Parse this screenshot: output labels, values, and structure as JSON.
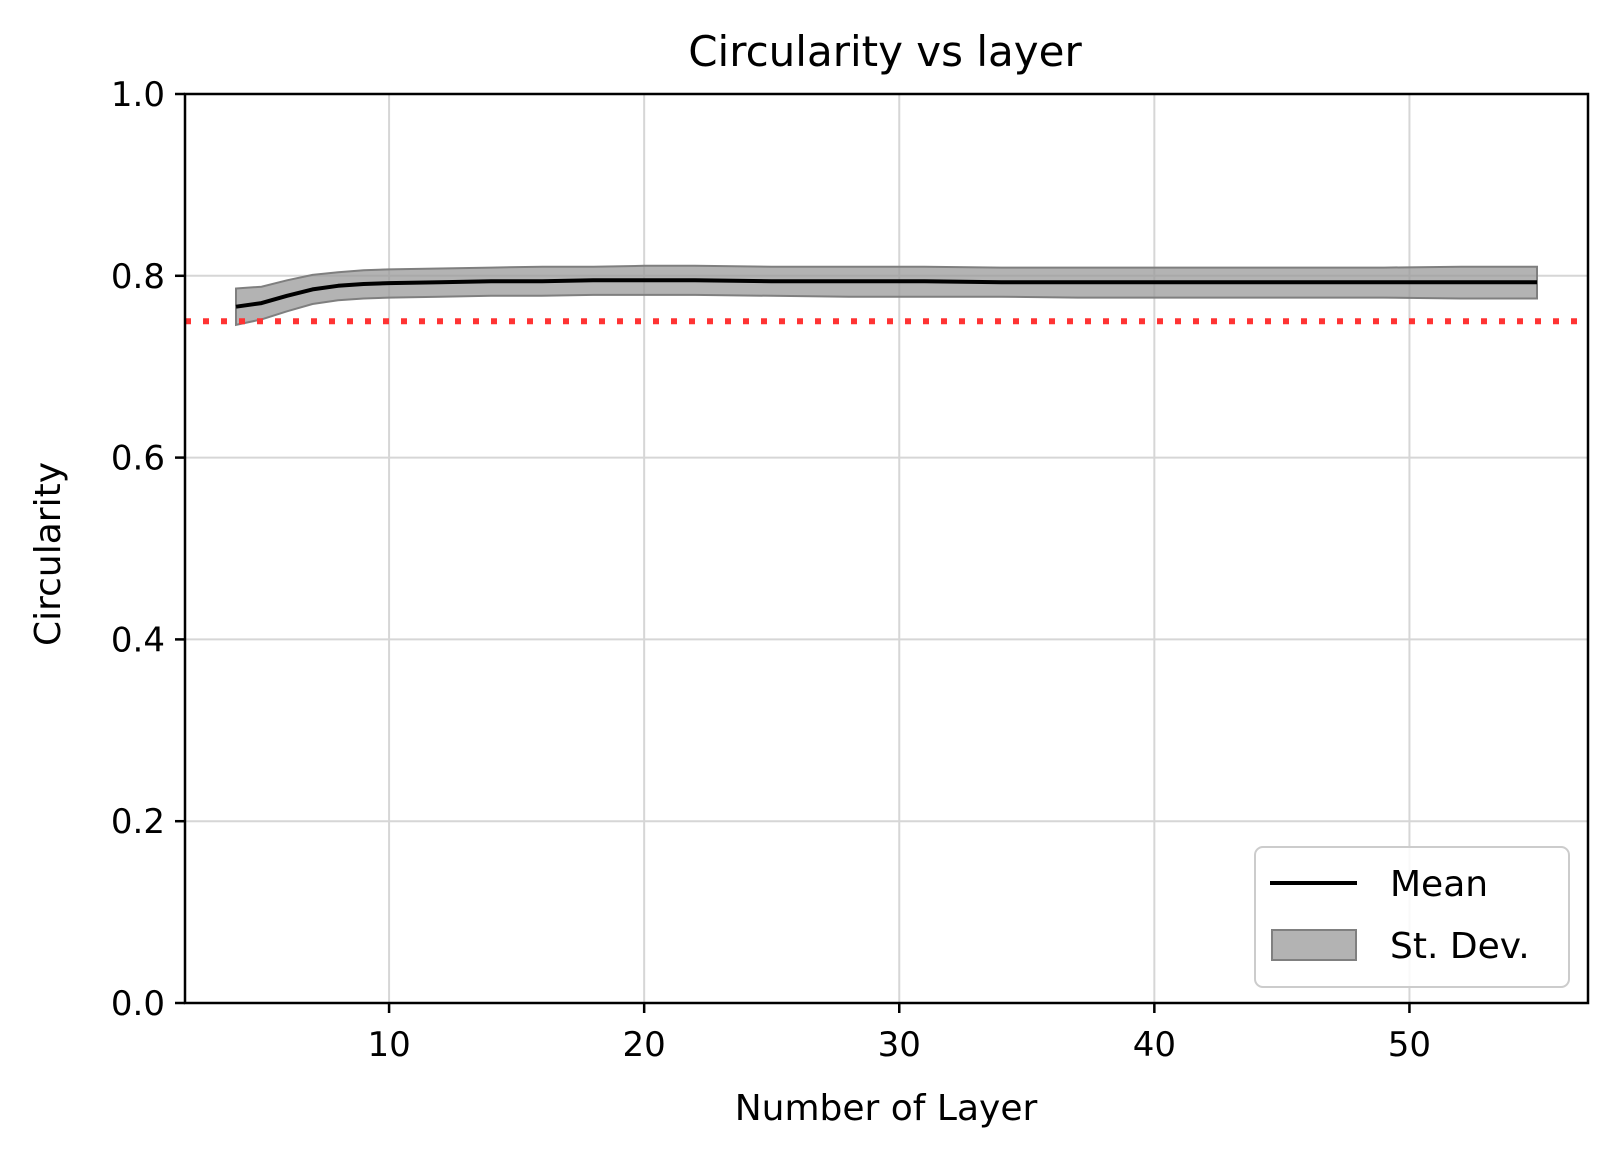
{
  "chart_data": {
    "type": "line",
    "title": "Circularity vs layer",
    "xlabel": "Number of Layer",
    "ylabel": "Circularity",
    "xlim": [
      2,
      57
    ],
    "ylim": [
      0.0,
      1.0
    ],
    "x_ticks": [
      10,
      20,
      30,
      40,
      50
    ],
    "y_ticks": [
      0.0,
      0.2,
      0.4,
      0.6,
      0.8,
      1.0
    ],
    "x_tick_labels": [
      "10",
      "20",
      "30",
      "40",
      "50"
    ],
    "y_tick_labels": [
      "0.0",
      "0.2",
      "0.4",
      "0.6",
      "0.8",
      "1.0"
    ],
    "grid": true,
    "legend_position": "bottom-right",
    "x": [
      4,
      5,
      6,
      7,
      8,
      9,
      10,
      12,
      14,
      16,
      18,
      20,
      22,
      25,
      28,
      31,
      34,
      37,
      40,
      43,
      46,
      49,
      52,
      55
    ],
    "series": [
      {
        "name": "Mean",
        "kind": "line",
        "color": "#000000",
        "values": [
          0.766,
          0.77,
          0.778,
          0.785,
          0.789,
          0.791,
          0.792,
          0.793,
          0.794,
          0.794,
          0.795,
          0.795,
          0.795,
          0.794,
          0.794,
          0.794,
          0.793,
          0.793,
          0.793,
          0.793,
          0.793,
          0.793,
          0.793,
          0.793
        ]
      },
      {
        "name": "St. Dev.",
        "kind": "band",
        "color": "#999999",
        "lower": [
          0.746,
          0.752,
          0.761,
          0.769,
          0.773,
          0.775,
          0.776,
          0.777,
          0.778,
          0.778,
          0.779,
          0.779,
          0.779,
          0.778,
          0.777,
          0.777,
          0.777,
          0.776,
          0.776,
          0.776,
          0.776,
          0.776,
          0.775,
          0.775
        ],
        "upper": [
          0.786,
          0.788,
          0.795,
          0.801,
          0.804,
          0.806,
          0.807,
          0.808,
          0.809,
          0.81,
          0.81,
          0.811,
          0.811,
          0.81,
          0.81,
          0.81,
          0.809,
          0.809,
          0.809,
          0.809,
          0.809,
          0.809,
          0.81,
          0.81
        ]
      }
    ],
    "reference_line": {
      "y": 0.75,
      "color": "#ff3333",
      "style": "dotted"
    }
  }
}
